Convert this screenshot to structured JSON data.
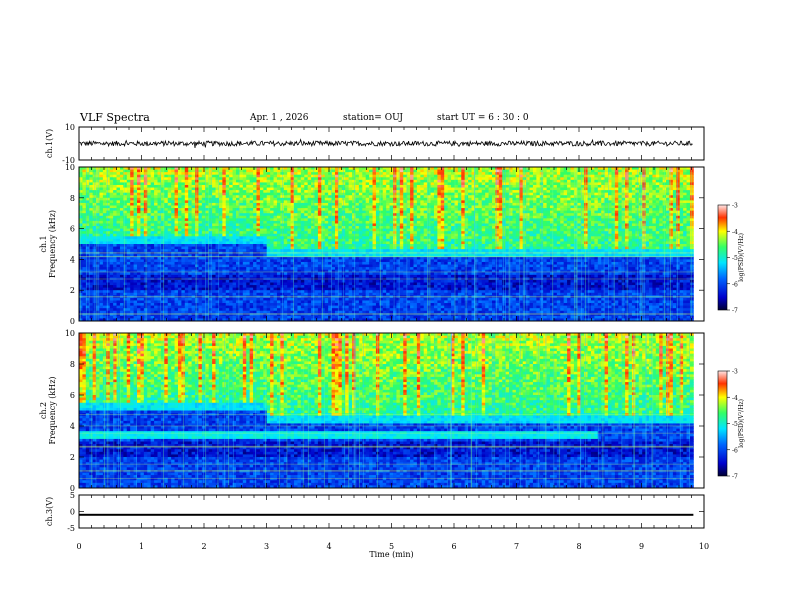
{
  "header": {
    "title": "VLF Spectra",
    "date": "Apr. 1 , 2026",
    "station": "station= OUJ",
    "start": "start UT =  6 : 30 : 0"
  },
  "chart_data": [
    {
      "type": "line",
      "panel": "ch1-waveform",
      "ylabel": "ch.1(V)",
      "ylim": [
        -10,
        10
      ],
      "yticks": [
        "10",
        "-10"
      ],
      "xlim": [
        0,
        10
      ],
      "mean": 0,
      "amplitude": 1.5,
      "trace_color": "#000000"
    },
    {
      "type": "heatmap",
      "panel": "ch1-spectrogram",
      "ylabel_line1": "ch.1",
      "ylabel_line2": "Frequency (kHz)",
      "ylim": [
        0,
        10
      ],
      "yticks": [
        "0",
        "2",
        "4",
        "6",
        "8",
        "10"
      ],
      "xlim": [
        0,
        9.83
      ],
      "colorbar": {
        "label": "log(PSD)(V²/Hz)",
        "range": [
          -7,
          -3
        ],
        "ticks": [
          "-3",
          "-4",
          "-5",
          "-6",
          "-7"
        ]
      },
      "profile": {
        "cutoff_khz_start": 5.5,
        "cutoff_khz_end": 4.6,
        "shift_time_min": 3.0
      }
    },
    {
      "type": "heatmap",
      "panel": "ch2-spectrogram",
      "ylabel_line1": "ch.2",
      "ylabel_line2": "Frequency (kHz)",
      "ylim": [
        0,
        10
      ],
      "yticks": [
        "0",
        "2",
        "4",
        "6",
        "8",
        "10"
      ],
      "xlim": [
        0,
        9.83
      ],
      "colorbar": {
        "label": "log(PSD)(V²/Hz)",
        "range": [
          -7,
          -3
        ],
        "ticks": [
          "-3",
          "-4",
          "-5",
          "-6",
          "-7"
        ]
      },
      "profile": {
        "cutoff_khz_start": 5.5,
        "cutoff_khz_end": 4.6,
        "shift_time_min": 3.0,
        "band_khz": [
          3.2,
          3.6
        ],
        "band_end_min": 8.3
      }
    },
    {
      "type": "line",
      "panel": "ch3-waveform",
      "ylabel": "ch.3(V)",
      "ylim": [
        -5,
        5
      ],
      "yticks": [
        "5",
        "0",
        "-5"
      ],
      "xlim": [
        0,
        10
      ],
      "mean": -1,
      "amplitude": 0.3,
      "trace_color": "#000000"
    },
    {
      "type": "axis",
      "panel": "time-axis",
      "xlabel": "Time (min)",
      "xticks": [
        "0",
        "1",
        "2",
        "3",
        "4",
        "5",
        "6",
        "7",
        "8",
        "9",
        "10"
      ],
      "xlim": [
        0,
        10
      ]
    }
  ]
}
